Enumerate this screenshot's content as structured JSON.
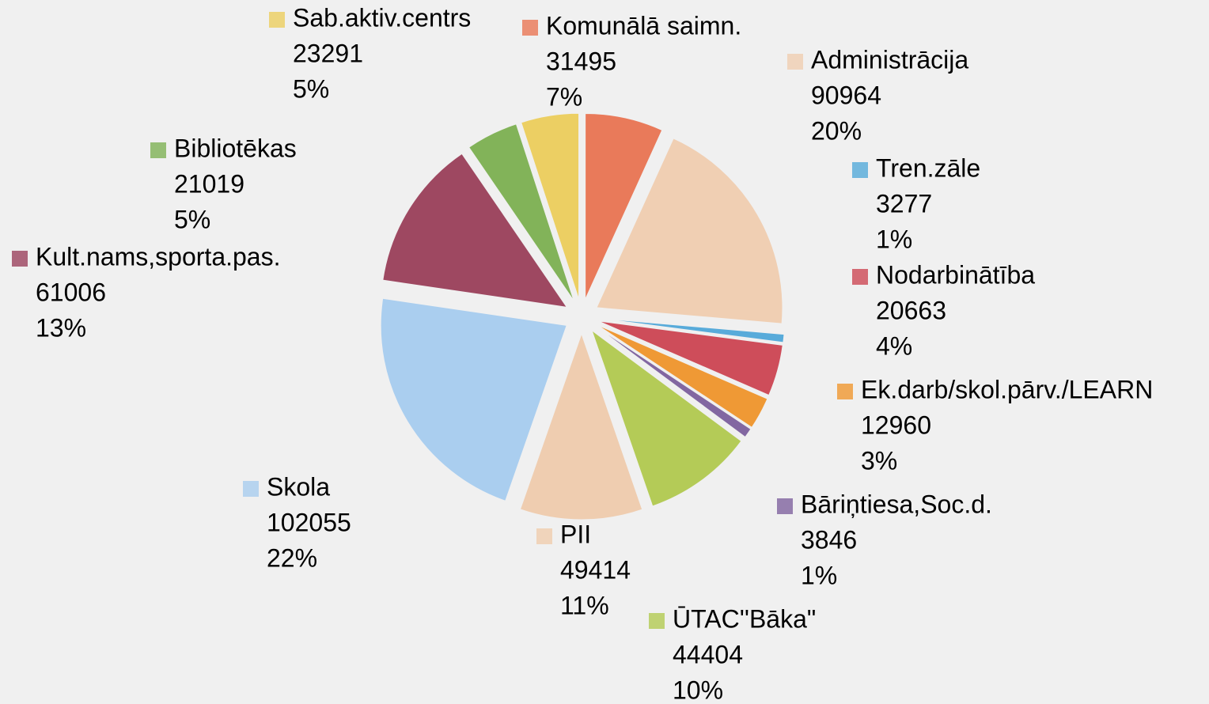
{
  "chart_data": {
    "type": "pie",
    "categories": [
      "Komunālā saimn.",
      "Administrācija",
      "Tren.zāle",
      "Nodarbinātība",
      "Ek.darb/skol.pārv./LEARN",
      "Bāriņtiesa,Soc.d.",
      "ŪTAC''Bāka\"",
      "PII",
      "Skola",
      "Kult.nams,sporta.pas.",
      "Bibliotēkas",
      "Sab.aktiv.centrs"
    ],
    "values": [
      31495,
      90964,
      3277,
      20663,
      12960,
      3846,
      44404,
      49414,
      102055,
      61006,
      21019,
      23291
    ],
    "percent_labels": [
      "7%",
      "20%",
      "1%",
      "4%",
      "3%",
      "1%",
      "10%",
      "11%",
      "22%",
      "13%",
      "5%",
      "5%"
    ],
    "colors": [
      "#e8653f",
      "#f0c9a8",
      "#3d9fd6",
      "#c8303f",
      "#ef8a14",
      "#6f4f93",
      "#a9c43c",
      "#efc7a4",
      "#9ec8ee",
      "#8f2a48",
      "#6ea83e",
      "#ebc94a"
    ]
  }
}
